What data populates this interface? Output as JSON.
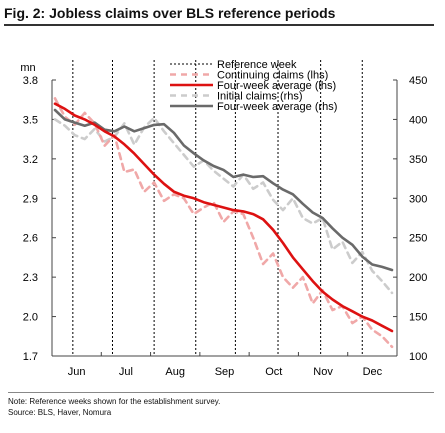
{
  "header": {
    "title": "Fig. 2: Jobless claims over BLS reference periods"
  },
  "footer": {
    "note": "Note: Reference weeks shown for the establishment survey.",
    "source": "Source: BLS, Haver, Nomura"
  },
  "colors": {
    "continuing": "#f0a8a8",
    "continuing_avg": "#dd1111",
    "initial": "#cccccc",
    "initial_avg": "#6a6a6a",
    "reference": "#000000"
  },
  "chart_data": {
    "type": "line",
    "title": "Fig. 2: Jobless claims over BLS reference periods",
    "lhs_unit": "mn",
    "ylim_lhs": [
      1.7,
      3.8
    ],
    "ylim_rhs": [
      100,
      450
    ],
    "yticks_lhs": [
      "3.8",
      "3.5",
      "3.2",
      "2.9",
      "2.6",
      "2.3",
      "2.0",
      "1.7"
    ],
    "yticks_rhs": [
      "450",
      "400",
      "350",
      "300",
      "250",
      "200",
      "150",
      "100"
    ],
    "month_labels": [
      "Jun",
      "Jul",
      "Aug",
      "Sep",
      "Oct",
      "Nov",
      "Dec"
    ],
    "legend": [
      {
        "label": "Reference week",
        "style": "reference"
      },
      {
        "label": "Continuing claims (lhs)",
        "style": "continuing"
      },
      {
        "label": "Four-week average (lhs)",
        "style": "continuing_avg"
      },
      {
        "label": "Initial claims (rhs)",
        "style": "initial"
      },
      {
        "label": "Four-week average (rhs)",
        "style": "initial_avg"
      }
    ],
    "reference_week_index": [
      1.8,
      5.8,
      10.0,
      14.2,
      18.2,
      22.5,
      26.8,
      31.0
    ],
    "series": [
      {
        "name": "Continuing claims (lhs)",
        "axis": "lhs",
        "style": "continuing",
        "values": [
          3.66,
          3.52,
          3.46,
          3.55,
          3.47,
          3.3,
          3.38,
          3.1,
          3.12,
          2.95,
          3.02,
          2.88,
          2.93,
          2.9,
          2.78,
          2.83,
          2.87,
          2.72,
          2.8,
          2.78,
          2.6,
          2.4,
          2.48,
          2.3,
          2.22,
          2.3,
          2.1,
          2.2,
          2.05,
          2.08,
          1.95,
          2.0,
          1.9,
          1.85,
          1.77
        ]
      },
      {
        "name": "Four-week average (lhs)",
        "axis": "lhs",
        "style": "continuing_avg",
        "values": [
          3.62,
          3.58,
          3.53,
          3.5,
          3.46,
          3.41,
          3.37,
          3.31,
          3.24,
          3.16,
          3.08,
          3.01,
          2.95,
          2.92,
          2.9,
          2.87,
          2.85,
          2.83,
          2.81,
          2.8,
          2.78,
          2.74,
          2.66,
          2.56,
          2.45,
          2.36,
          2.27,
          2.19,
          2.13,
          2.08,
          2.04,
          2.0,
          1.97,
          1.93,
          1.89
        ]
      },
      {
        "name": "Initial claims (rhs)",
        "axis": "rhs",
        "style": "initial",
        "values": [
          400,
          392,
          380,
          375,
          388,
          372,
          378,
          395,
          368,
          390,
          402,
          385,
          370,
          355,
          340,
          348,
          335,
          325,
          315,
          330,
          312,
          320,
          298,
          285,
          300,
          275,
          268,
          275,
          235,
          245,
          218,
          232,
          208,
          195,
          180
        ]
      },
      {
        "name": "Four-week average (rhs)",
        "axis": "rhs",
        "style": "initial_avg",
        "values": [
          412,
          400,
          396,
          392,
          396,
          387,
          385,
          391,
          385,
          389,
          393,
          394,
          383,
          367,
          357,
          348,
          341,
          336,
          327,
          330,
          327,
          328,
          319,
          311,
          305,
          293,
          282,
          275,
          262,
          250,
          241,
          226,
          216,
          213,
          209
        ]
      }
    ]
  }
}
